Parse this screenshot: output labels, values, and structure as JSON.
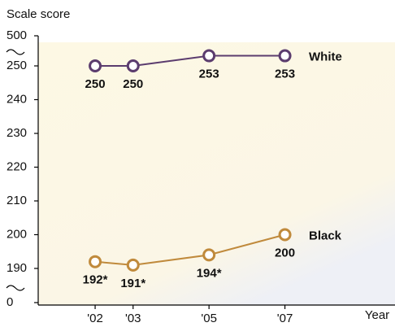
{
  "chart_data": {
    "type": "line",
    "y_axis_label": "Scale score",
    "x_axis_label": "Year",
    "x": [
      2002,
      2003,
      2005,
      2007
    ],
    "xlim": [
      2000.5,
      2009.9
    ],
    "xticks": [
      {
        "value": 2002,
        "label": "'02"
      },
      {
        "value": 2003,
        "label": "'03"
      },
      {
        "value": 2005,
        "label": "'05"
      },
      {
        "value": 2007,
        "label": "'07"
      }
    ],
    "ylim": [
      0,
      500
    ],
    "yticks": [
      0,
      190,
      200,
      210,
      220,
      230,
      240,
      250,
      500
    ],
    "axis_break": true,
    "series": [
      {
        "name": "White",
        "color": "#5b3c6e",
        "values": [
          250,
          250,
          253,
          253
        ]
      },
      {
        "name": "Black",
        "color": "#c08a3c",
        "values": [
          192,
          191,
          194,
          200
        ],
        "value_labels": [
          "192*",
          "191*",
          "194*",
          "200"
        ]
      }
    ]
  }
}
